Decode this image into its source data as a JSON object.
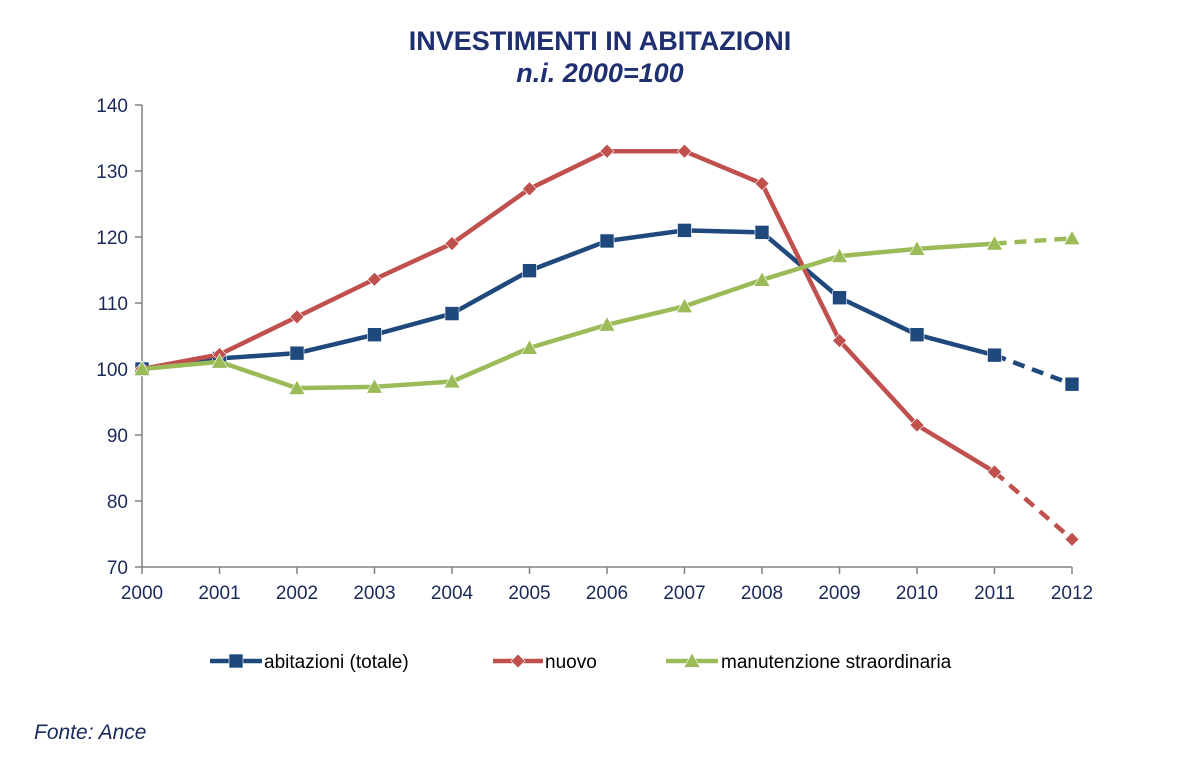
{
  "chart_data": {
    "type": "line",
    "title": "INVESTIMENTI IN ABITAZIONI",
    "subtitle": "n.i. 2000=100",
    "source": "Fonte: Ance",
    "title_color": "#1f2f70",
    "axis_text_color": "#1a2a5a",
    "x": [
      "2000",
      "2001",
      "2002",
      "2003",
      "2004",
      "2005",
      "2006",
      "2007",
      "2008",
      "2009",
      "2010",
      "2011",
      "2012"
    ],
    "ylim": [
      70,
      140
    ],
    "yticks": [
      70,
      80,
      90,
      100,
      110,
      120,
      130,
      140
    ],
    "grid": false,
    "legend_position": "bottom",
    "series": [
      {
        "name": "abitazioni (totale)",
        "color": "#1f497d",
        "marker": "square",
        "values": [
          100,
          101.6,
          102.4,
          105.2,
          108.4,
          114.9,
          119.4,
          121.0,
          120.7,
          110.8,
          105.2,
          102.1,
          97.7
        ],
        "dashed_from_index": 11
      },
      {
        "name": "nuovo",
        "color": "#c0504d",
        "marker": "diamond",
        "values": [
          100,
          102.2,
          107.9,
          113.6,
          119.0,
          127.3,
          133.0,
          133.0,
          128.1,
          104.3,
          91.5,
          84.4,
          74.2
        ],
        "dashed_from_index": 11
      },
      {
        "name": "manutenzione straordinaria",
        "color": "#9bbb59",
        "marker": "triangle",
        "values": [
          100,
          101.1,
          97.1,
          97.3,
          98.1,
          103.2,
          106.7,
          109.5,
          113.5,
          117.1,
          118.2,
          119.0,
          119.8
        ],
        "dashed_from_index": 11
      }
    ]
  }
}
